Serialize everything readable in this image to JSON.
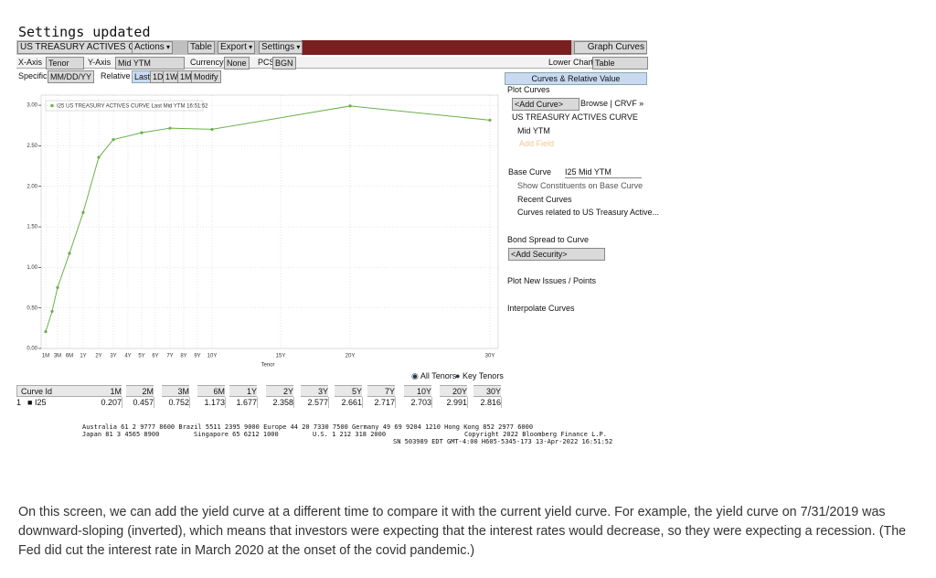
{
  "status": "Settings updated",
  "toolbar": {
    "security": "US TREASURY ACTIVES CURV",
    "actions": "Actions",
    "table": "Table",
    "export": "Export",
    "settings": "Settings",
    "graph": "Graph Curves"
  },
  "axis_bar": {
    "x_axis": "X-Axis",
    "x_value": "Tenor",
    "y_axis": "Y-Axis",
    "y_value": "Mid YTM",
    "currency": "Currency",
    "currency_value": "None",
    "pcs": "PCS",
    "pcs_value": "BGN",
    "lower_chart": "Lower Chart",
    "lower_chart_value": "Table"
  },
  "date_bar": {
    "specific": "Specific",
    "date_format": "MM/DD/YY",
    "relative": "Relative",
    "periods": [
      "Last",
      "1D",
      "1W",
      "1M"
    ],
    "modify": "Modify"
  },
  "panel": {
    "title": "Curves & Relative Value",
    "plot_curves": "Plot Curves",
    "add_curve": "<Add Curve>",
    "browse": "Browse | CRVF »",
    "curve": "US TREASURY ACTIVES CURVE",
    "field": "Mid YTM",
    "add_field": "Add Field",
    "base_curve": "Base Curve",
    "base_curve_value": "I25 Mid YTM",
    "show_constituents": "Show Constituents on Base Curve",
    "recent_curves": "Recent Curves",
    "related_curves": "Curves related to US Treasury Active...",
    "bond_spread": "Bond Spread to Curve",
    "add_security": "<Add Security>",
    "plot_new_issues": "Plot New Issues / Points",
    "interpolate": "Interpolate Curves"
  },
  "chart_data": {
    "type": "line",
    "legend": "I25 US TREASURY ACTIVES CURVE Last Mid YTM 16:51:52",
    "xlabel": "Tenor",
    "xticks": [
      "1M",
      "3M",
      "6M",
      "1Y",
      "2Y",
      "3Y",
      "4Y",
      "5Y",
      "6Y",
      "7Y",
      "8Y",
      "9Y",
      "10Y",
      "15Y",
      "20Y",
      "30Y"
    ],
    "ylim": [
      0,
      3.08
    ],
    "yticks": [
      {
        "value": 0,
        "label": "0.00"
      },
      {
        "value": 0.5,
        "label": "0.50"
      },
      {
        "value": 1,
        "label": "1.00"
      },
      {
        "value": 1.5,
        "label": "1.50"
      },
      {
        "value": 2,
        "label": "2.00"
      },
      {
        "value": 2.5,
        "label": "2.50"
      },
      {
        "value": 3,
        "label": "3.00"
      }
    ],
    "grid": true,
    "x": [
      "1M",
      "2M",
      "3M",
      "6M",
      "1Y",
      "2Y",
      "3Y",
      "5Y",
      "7Y",
      "10Y",
      "20Y",
      "30Y"
    ],
    "series": [
      {
        "name": "I25",
        "color": "#6ab04c",
        "values": [
          0.207,
          0.457,
          0.752,
          1.173,
          1.677,
          2.358,
          2.577,
          2.661,
          2.717,
          2.703,
          2.991,
          2.816
        ]
      }
    ]
  },
  "table": {
    "header": "Curve Id",
    "row_number": "1"
  },
  "tenor_options": [
    "All Tenors",
    "Key Tenors"
  ],
  "footer": [
    "Australia 61 2 9777 8600 Brazil 5511 2395 9000 Europe 44 20 7330 7500 Germany 49 69 9204 1210 Hong Kong 852 2977 6000",
    "Japan 81 3 4565 8900",
    "Singapore 65 6212 1000",
    "U.S. 1 212 318 2000",
    "Copyright 2022 Bloomberg Finance L.P.",
    "SN 503989 EDT  GMT-4:00 H605-5345-173 13-Apr-2022 16:51:52"
  ],
  "caption": "On this screen, we can add the yield curve at a different time to compare it with the current yield curve. For example, the yield curve on 7/31/2019 was downward-sloping (inverted), which means that investors were expecting that the interest rates would decrease, so they were expecting a recession. (The Fed did cut the interest rate in March 2020 at the onset of the covid pandemic.)"
}
